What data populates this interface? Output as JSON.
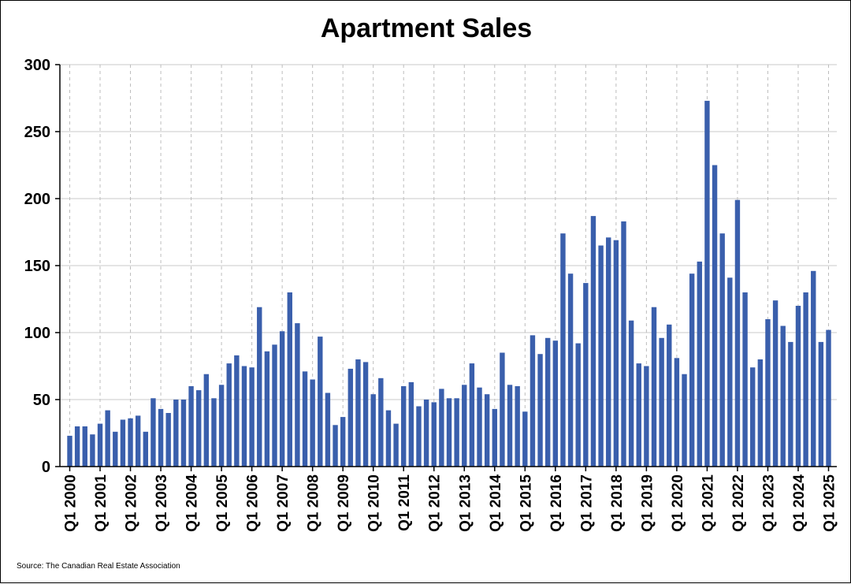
{
  "chart_data": {
    "type": "bar",
    "title": "Apartment Sales",
    "source": "Source: The Canadian Real Estate Association",
    "xlabel": "",
    "ylabel": "",
    "ylim": [
      0,
      300
    ],
    "yticks": [
      0,
      50,
      100,
      150,
      200,
      250,
      300
    ],
    "grid": {
      "horizontal": true,
      "vertical_dashed": true
    },
    "bar_color": "#3a5fac",
    "start_year": 2000,
    "tick_labels": [
      "Q1 2000",
      "Q1 2001",
      "Q1 2002",
      "Q1 2003",
      "Q1 2004",
      "Q1 2005",
      "Q1 2006",
      "Q1 2007",
      "Q1 2008",
      "Q1 2009",
      "Q1 2010",
      "Q1 2011",
      "Q1 2012",
      "Q1 2013",
      "Q1 2014",
      "Q1 2015",
      "Q1 2016",
      "Q1 2017",
      "Q1 2018",
      "Q1 2019",
      "Q1 2020",
      "Q1 2021",
      "Q1 2022",
      "Q1 2023",
      "Q1 2024",
      "Q1 2025"
    ],
    "values": [
      23,
      30,
      30,
      24,
      32,
      42,
      26,
      35,
      36,
      38,
      26,
      51,
      43,
      40,
      50,
      50,
      60,
      57,
      69,
      51,
      61,
      77,
      83,
      75,
      74,
      119,
      86,
      91,
      101,
      130,
      107,
      71,
      65,
      97,
      55,
      31,
      37,
      73,
      80,
      78,
      54,
      66,
      42,
      32,
      60,
      63,
      45,
      50,
      48,
      58,
      51,
      51,
      61,
      77,
      59,
      54,
      43,
      85,
      61,
      60,
      41,
      98,
      84,
      96,
      94,
      174,
      144,
      92,
      137,
      187,
      165,
      171,
      169,
      183,
      109,
      77,
      75,
      119,
      96,
      106,
      81,
      69,
      144,
      153,
      273,
      225,
      174,
      141,
      199,
      130,
      74,
      80,
      110,
      124,
      105,
      93,
      120,
      130,
      146,
      93,
      102
    ]
  }
}
